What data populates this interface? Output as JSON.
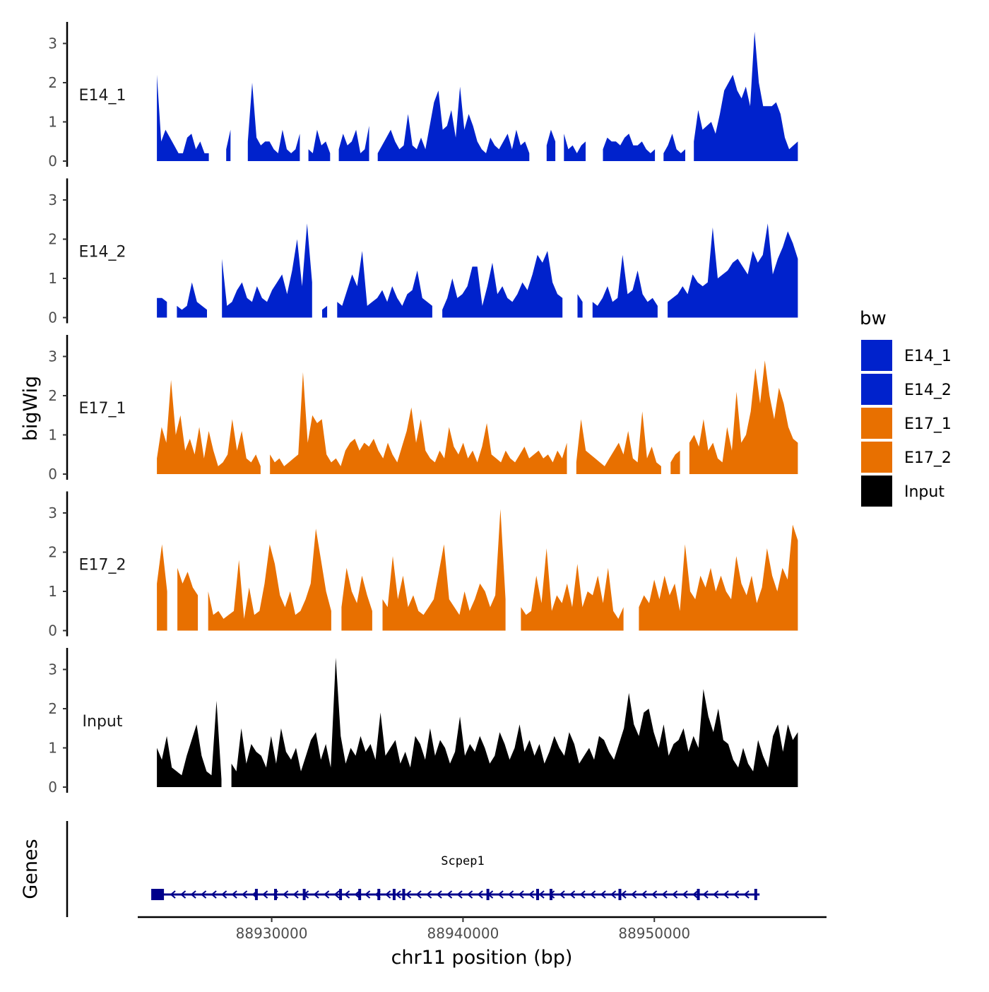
{
  "chart_data": {
    "type": "area",
    "title": "",
    "ylabel": "bigWig",
    "xlabel": "chr11 position (bp)",
    "genes_label": "Genes",
    "xlim": [
      88923000,
      88959000
    ],
    "ylim": [
      0,
      3.4
    ],
    "yticks": [
      0,
      1,
      2,
      3
    ],
    "xticks": [
      88930000,
      88940000,
      88950000
    ],
    "xtick_labels": [
      "88930000",
      "88940000",
      "88950000"
    ],
    "x_start": 88924000,
    "x_end": 88957500,
    "legend": {
      "title": "bw",
      "position": "right",
      "entries": [
        {
          "name": "E14_1",
          "color": "#0022CC"
        },
        {
          "name": "E14_2",
          "color": "#0022CC"
        },
        {
          "name": "E17_1",
          "color": "#E87000"
        },
        {
          "name": "E17_2",
          "color": "#E87000"
        },
        {
          "name": "Input",
          "color": "#000000"
        }
      ]
    },
    "series": [
      {
        "name": "E14_1",
        "color": "#0022CC",
        "values": [
          2.2,
          0.5,
          0.8,
          0.6,
          0.4,
          0.2,
          0.2,
          0.6,
          0.7,
          0.3,
          0.5,
          0.2,
          0.2,
          null,
          0.2,
          null,
          0.3,
          0.8,
          null,
          1.5,
          null,
          0.5,
          2.0,
          0.6,
          0.4,
          0.5,
          0.5,
          0.3,
          0.2,
          0.8,
          0.3,
          0.2,
          0.3,
          0.7,
          null,
          0.3,
          0.2,
          0.8,
          0.4,
          0.5,
          0.2,
          null,
          0.3,
          0.7,
          0.4,
          0.5,
          0.8,
          0.2,
          0.3,
          0.9,
          null,
          0.2,
          0.4,
          0.6,
          0.8,
          0.5,
          0.3,
          0.4,
          1.2,
          0.4,
          0.3,
          0.6,
          0.3,
          0.9,
          1.5,
          1.8,
          0.8,
          0.9,
          1.3,
          0.6,
          1.9,
          0.8,
          1.2,
          0.9,
          0.5,
          0.3,
          0.2,
          0.6,
          0.4,
          0.3,
          0.5,
          0.7,
          0.3,
          0.8,
          0.4,
          0.5,
          0.2,
          null,
          0.2,
          null,
          0.4,
          0.8,
          0.5,
          null,
          0.7,
          0.3,
          0.4,
          0.2,
          0.4,
          0.5,
          null,
          null,
          null,
          0.3,
          0.6,
          0.5,
          0.5,
          0.4,
          0.6,
          0.7,
          0.4,
          0.4,
          0.5,
          0.3,
          0.2,
          0.3,
          null,
          0.2,
          0.4,
          0.7,
          0.3,
          0.2,
          0.3,
          null,
          0.5,
          1.3,
          0.8,
          0.9,
          1.0,
          0.7,
          1.2,
          1.8,
          2.0,
          2.2,
          1.8,
          1.6,
          1.9,
          1.4,
          3.3,
          2.0,
          1.4,
          1.4,
          1.4,
          1.5,
          1.2,
          0.6,
          0.3,
          0.4,
          0.5
        ]
      },
      {
        "name": "E14_2",
        "color": "#0022CC",
        "values": [
          0.5,
          0.5,
          0.4,
          null,
          0.3,
          0.2,
          0.3,
          0.9,
          0.4,
          0.3,
          0.2,
          null,
          null,
          1.5,
          0.3,
          0.4,
          0.7,
          0.9,
          0.5,
          0.4,
          0.8,
          0.5,
          0.4,
          0.7,
          0.9,
          1.1,
          0.6,
          1.2,
          2.0,
          0.8,
          2.4,
          0.9,
          null,
          0.2,
          0.3,
          null,
          0.4,
          0.3,
          0.7,
          1.1,
          0.8,
          1.7,
          0.3,
          0.4,
          0.5,
          0.7,
          0.4,
          0.8,
          0.5,
          0.3,
          0.6,
          0.7,
          1.2,
          0.5,
          0.4,
          0.3,
          null,
          0.2,
          0.5,
          1.0,
          0.5,
          0.6,
          0.8,
          1.3,
          1.3,
          0.3,
          0.8,
          1.4,
          0.6,
          0.8,
          0.5,
          0.4,
          0.6,
          0.9,
          0.7,
          1.1,
          1.6,
          1.4,
          1.7,
          0.9,
          0.6,
          0.5,
          null,
          null,
          0.6,
          0.4,
          null,
          0.4,
          0.3,
          0.5,
          0.8,
          0.4,
          0.5,
          1.6,
          0.6,
          0.7,
          1.2,
          0.6,
          0.4,
          0.5,
          0.3,
          null,
          0.4,
          0.5,
          0.6,
          0.8,
          0.6,
          1.1,
          0.9,
          0.8,
          0.9,
          2.3,
          1.0,
          1.1,
          1.2,
          1.4,
          1.5,
          1.3,
          1.1,
          1.7,
          1.4,
          1.6,
          2.4,
          1.1,
          1.5,
          1.8,
          2.2,
          1.9,
          1.5
        ]
      },
      {
        "name": "E17_1",
        "color": "#E87000",
        "values": [
          0.4,
          1.2,
          0.8,
          2.4,
          1.0,
          1.5,
          0.6,
          0.9,
          0.5,
          1.2,
          0.4,
          1.1,
          0.6,
          0.2,
          0.3,
          0.5,
          1.4,
          0.6,
          1.1,
          0.4,
          0.3,
          0.5,
          0.2,
          null,
          0.5,
          0.3,
          0.4,
          0.2,
          0.3,
          0.4,
          0.5,
          2.6,
          0.8,
          1.5,
          1.3,
          1.4,
          0.5,
          0.3,
          0.4,
          0.2,
          0.6,
          0.8,
          0.9,
          0.6,
          0.8,
          0.7,
          0.9,
          0.6,
          0.4,
          0.8,
          0.5,
          0.3,
          0.7,
          1.1,
          1.7,
          0.8,
          1.4,
          0.6,
          0.4,
          0.3,
          0.6,
          0.4,
          1.2,
          0.7,
          0.5,
          0.8,
          0.4,
          0.6,
          0.3,
          0.7,
          1.3,
          0.5,
          0.4,
          0.3,
          0.6,
          0.4,
          0.3,
          0.5,
          0.7,
          0.4,
          0.5,
          0.6,
          0.4,
          0.5,
          0.3,
          0.6,
          0.4,
          0.8,
          null,
          0.3,
          1.4,
          0.6,
          0.5,
          0.4,
          0.3,
          0.2,
          0.4,
          0.6,
          0.8,
          0.5,
          1.1,
          0.4,
          0.3,
          1.6,
          0.4,
          0.7,
          0.3,
          0.2,
          null,
          0.3,
          0.5,
          0.6,
          null,
          0.8,
          1.0,
          0.7,
          1.4,
          0.6,
          0.8,
          0.4,
          0.3,
          1.2,
          0.6,
          2.1,
          0.8,
          1.0,
          1.6,
          2.7,
          1.8,
          2.9,
          2.0,
          1.4,
          2.2,
          1.8,
          1.2,
          0.9,
          0.8
        ]
      },
      {
        "name": "E17_2",
        "color": "#E87000",
        "values": [
          1.2,
          2.2,
          1.0,
          null,
          1.6,
          1.2,
          1.5,
          1.1,
          0.9,
          null,
          1.0,
          0.4,
          0.5,
          0.3,
          0.4,
          0.5,
          1.8,
          0.3,
          1.1,
          0.4,
          0.5,
          1.2,
          2.2,
          1.7,
          0.9,
          0.6,
          1.0,
          0.4,
          0.5,
          0.8,
          1.2,
          2.6,
          1.8,
          1.0,
          0.5,
          null,
          0.6,
          1.6,
          1.0,
          0.7,
          1.4,
          0.9,
          0.5,
          null,
          0.8,
          0.6,
          1.9,
          0.8,
          1.4,
          0.6,
          0.9,
          0.5,
          0.4,
          0.6,
          0.8,
          1.5,
          2.2,
          0.8,
          0.6,
          0.4,
          1.0,
          0.5,
          0.8,
          1.2,
          1.0,
          0.6,
          0.9,
          3.1,
          0.8,
          null,
          null,
          0.6,
          0.4,
          0.5,
          1.4,
          0.7,
          2.1,
          0.5,
          0.9,
          0.7,
          1.2,
          0.6,
          1.7,
          0.6,
          1.0,
          0.9,
          1.4,
          0.7,
          1.6,
          0.5,
          0.3,
          0.6,
          null,
          null,
          0.6,
          0.9,
          0.7,
          1.3,
          0.8,
          1.4,
          0.9,
          1.2,
          0.5,
          2.2,
          1.0,
          0.8,
          1.4,
          1.1,
          1.6,
          1.0,
          1.4,
          1.0,
          0.8,
          1.9,
          1.2,
          0.9,
          1.4,
          0.7,
          1.1,
          2.1,
          1.4,
          1.0,
          1.6,
          1.3,
          2.7,
          2.3
        ]
      },
      {
        "name": "Input",
        "color": "#000000",
        "values": [
          1.0,
          0.7,
          1.3,
          0.5,
          0.4,
          0.3,
          0.8,
          1.2,
          1.6,
          0.8,
          0.4,
          0.3,
          2.2,
          0.2,
          null,
          0.6,
          0.4,
          1.5,
          0.6,
          1.1,
          0.9,
          0.8,
          0.5,
          1.3,
          0.6,
          1.5,
          0.9,
          0.7,
          1.0,
          0.4,
          0.8,
          1.2,
          1.4,
          0.7,
          1.1,
          0.5,
          3.3,
          1.3,
          0.6,
          1.0,
          0.8,
          1.3,
          0.9,
          1.1,
          0.7,
          1.9,
          0.8,
          1.0,
          1.2,
          0.6,
          0.9,
          0.5,
          1.3,
          1.1,
          0.7,
          1.5,
          0.8,
          1.2,
          1.0,
          0.6,
          0.9,
          1.8,
          0.8,
          1.1,
          0.9,
          1.3,
          1.0,
          0.6,
          0.8,
          1.4,
          1.1,
          0.7,
          1.0,
          1.6,
          0.9,
          1.2,
          0.8,
          1.1,
          0.6,
          0.9,
          1.3,
          1.0,
          0.8,
          1.4,
          1.1,
          0.6,
          0.8,
          1.0,
          0.7,
          1.3,
          1.2,
          0.9,
          0.7,
          1.1,
          1.5,
          2.4,
          1.6,
          1.3,
          1.9,
          2.0,
          1.4,
          1.0,
          1.6,
          0.8,
          1.1,
          1.2,
          1.5,
          0.9,
          1.3,
          1.0,
          2.5,
          1.8,
          1.4,
          2.0,
          1.2,
          1.1,
          0.7,
          0.5,
          1.0,
          0.6,
          0.4,
          1.2,
          0.8,
          0.5,
          1.3,
          1.6,
          0.9,
          1.6,
          1.2,
          1.4
        ]
      }
    ],
    "gene": {
      "name": "Scpep1",
      "start": 88924000,
      "end": 88955500,
      "strand": "-",
      "color": "#00008B",
      "exons": [
        88924000,
        88929200,
        88930200,
        88931700,
        88933600,
        88934600,
        88935600,
        88936400,
        88936900,
        88941300,
        88943900,
        88944600,
        88948200,
        88952300,
        88955300
      ]
    }
  }
}
